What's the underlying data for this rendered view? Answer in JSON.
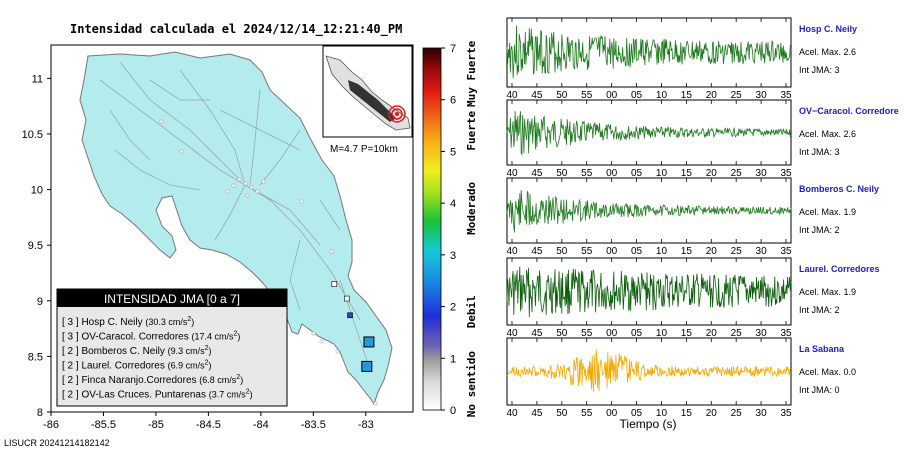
{
  "map": {
    "title": "Intensidad calculada el 2024/12/14_12:21:40_PM",
    "x_ticks": [
      "-86",
      "-85.5",
      "-85",
      "-84.5",
      "-84",
      "-83.5",
      "-83"
    ],
    "y_ticks": [
      "11",
      "10.5",
      "10",
      "9.5",
      "9",
      "8.5",
      "8"
    ],
    "inset_caption": "M=4.7  P=10km",
    "legend_title": "INTENSIDAD JMA [0 a 7]",
    "legend_items": [
      {
        "level": "[ 3 ]",
        "name": "Hosp C. Neily",
        "value": "(30.3 cm/s",
        "exp": "2",
        ")": ")"
      },
      {
        "level": "[ 3 ]",
        "name": "OV-Caracol. Corredores",
        "value": "(17.4 cm/s",
        "exp": "2",
        ")": ")"
      },
      {
        "level": "[ 2 ]",
        "name": "Bomberos C. Neily",
        "value": "(9.3 cm/s",
        "exp": "2",
        ")": ")"
      },
      {
        "level": "[ 2 ]",
        "name": "Laurel. Corredores",
        "value": "(6.9 cm/s",
        "exp": "2",
        ")": ")"
      },
      {
        "level": "[ 2 ]",
        "name": "Finca Naranjo.Corredores",
        "value": "(6.8 cm/s",
        "exp": "2",
        ")": ")"
      },
      {
        "level": "[ 2 ]",
        "name": "OV-Las Cruces. Puntarenas",
        "value": "(3.7 cm/s",
        "exp": "2",
        ")": ")"
      }
    ],
    "stations": [
      {
        "lon": -82.97,
        "lat": 8.63,
        "color": "#1f9bdc"
      },
      {
        "lon": -82.99,
        "lat": 8.41,
        "color": "#1f9bdc"
      }
    ],
    "small_stations": [
      {
        "lon": -83.15,
        "lat": 8.87,
        "color": "#2a44d0"
      },
      {
        "lon": -83.18,
        "lat": 9.02,
        "color": "#ffffff"
      },
      {
        "lon": -83.3,
        "lat": 9.15,
        "color": "#ffffff"
      }
    ]
  },
  "colorbar": {
    "ticks": [
      "0",
      "1",
      "2",
      "3",
      "4",
      "5",
      "6",
      "7"
    ],
    "labels": [
      "No sentido",
      "Debil",
      "Moderado",
      "Fuerte",
      "Muy Fuerte"
    ]
  },
  "chart_data": {
    "type": "line",
    "xlabel": "Tiempo (s)",
    "x_tick_labels": [
      "40",
      "45",
      "50",
      "55",
      "00",
      "05",
      "10",
      "15",
      "20",
      "25",
      "30",
      "35"
    ],
    "series": [
      {
        "name": "Hosp C. Neily",
        "accel_label": "Acel. Max. 2.6",
        "int_label": "Int JMA: 3",
        "color": "#1e7a1e",
        "amp": 0.95,
        "decay": 0.55,
        "noise": 0.35,
        "seed": 3
      },
      {
        "name": "OV−Caracol. Corredore",
        "accel_label": "Acel. Max. 2.6",
        "int_label": "Int JMA: 3",
        "color": "#1e7a1e",
        "amp": 0.95,
        "decay": 0.7,
        "noise": 0.12,
        "seed": 7
      },
      {
        "name": "Bomberos C. Neily",
        "accel_label": "Acel. Max. 1.9",
        "int_label": "Int JMA: 2",
        "color": "#1e7a1e",
        "amp": 0.9,
        "decay": 0.7,
        "noise": 0.12,
        "seed": 11
      },
      {
        "name": "Laurel. Corredores",
        "accel_label": "Acel. Max. 1.9",
        "int_label": "Int JMA: 2",
        "color": "#0b5e0b",
        "amp": 0.9,
        "decay": 0.25,
        "noise": 0.45,
        "seed": 17
      },
      {
        "name": "La Sabana",
        "accel_label": "Acel. Max. 0.0",
        "int_label": "Int JMA: 0",
        "color": "#f5a800",
        "amp": 0.85,
        "decay": 0.0,
        "noise": 0.3,
        "seed": 23,
        "burst": true
      }
    ]
  },
  "footer": "LISUCR 20241214182142"
}
